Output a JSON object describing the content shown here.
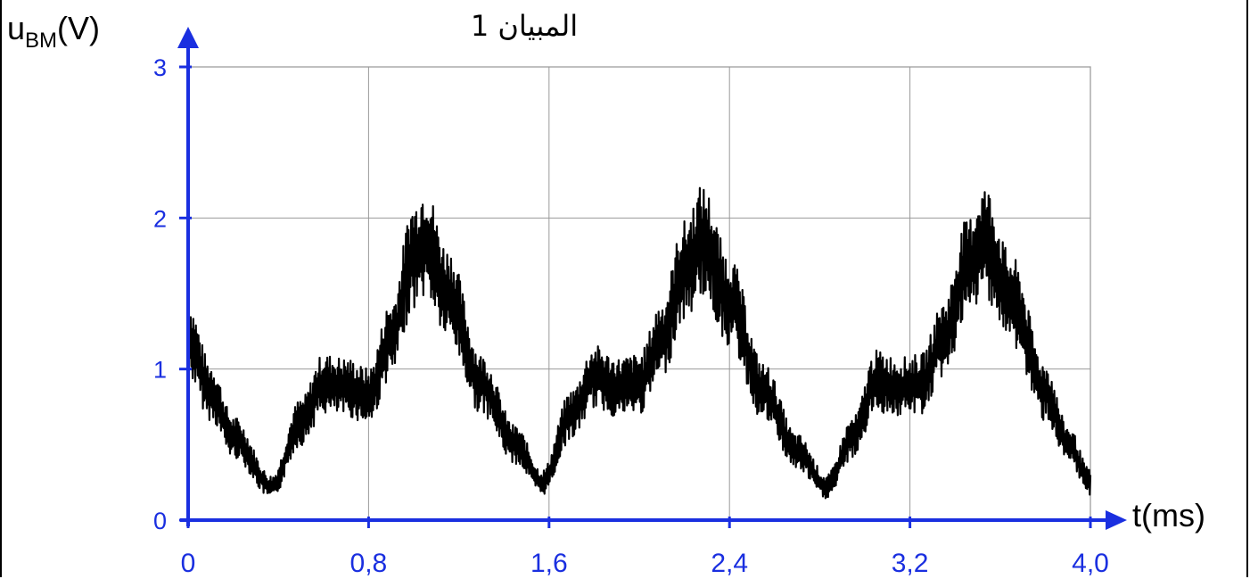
{
  "chart_data": {
    "type": "line",
    "title": "المبيان 1",
    "ylabel_main": "u",
    "ylabel_sub": "BM",
    "ylabel_unit": "(V)",
    "xlabel": "t(ms)",
    "xlim": [
      0,
      4.0
    ],
    "ylim": [
      0,
      3
    ],
    "x_ticks": [
      0,
      0.8,
      1.6,
      2.4,
      3.2,
      4.0
    ],
    "x_tick_labels": [
      "0",
      "0,8",
      "1,6",
      "2,4",
      "3,2",
      "4,0"
    ],
    "y_ticks": [
      0,
      1,
      2,
      3
    ],
    "y_tick_labels": [
      "0",
      "1",
      "2",
      "3"
    ],
    "grid": true,
    "axis_color": "#1a2fe0",
    "trace_color": "#000000",
    "series": [
      {
        "x": [
          0,
          0.1,
          0.2,
          0.37,
          0.5,
          0.6,
          0.7,
          0.8,
          0.9,
          1.0,
          1.05,
          1.15,
          1.3,
          1.45,
          1.57,
          1.7,
          1.8,
          1.9,
          2.0,
          2.1,
          2.2,
          2.28,
          2.4,
          2.55,
          2.7,
          2.83,
          2.95,
          3.05,
          3.15,
          3.25,
          3.35,
          3.45,
          3.53,
          3.65,
          3.8,
          3.9,
          4.0
        ],
        "y": [
          1.2,
          0.85,
          0.55,
          0.22,
          0.65,
          0.9,
          0.88,
          0.82,
          1.2,
          1.75,
          1.85,
          1.5,
          0.9,
          0.5,
          0.25,
          0.7,
          0.95,
          0.88,
          0.9,
          1.2,
          1.65,
          1.85,
          1.45,
          0.85,
          0.45,
          0.22,
          0.55,
          0.92,
          0.88,
          0.9,
          1.2,
          1.65,
          1.85,
          1.45,
          0.85,
          0.5,
          0.25
        ],
        "ripple_amplitude": 0.3
      }
    ]
  }
}
